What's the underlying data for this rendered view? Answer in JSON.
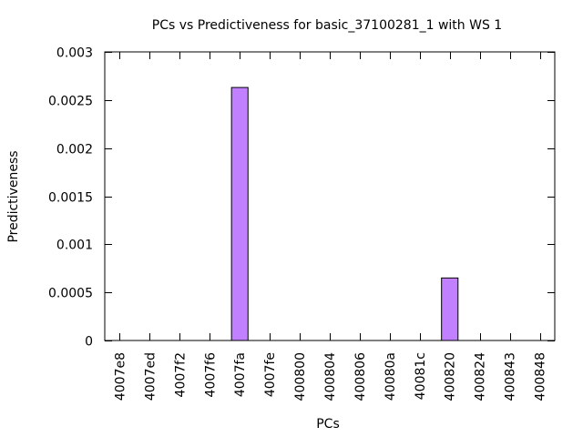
{
  "chart_data": {
    "type": "bar",
    "title": "PCs vs Predictiveness for basic_37100281_1 with WS 1",
    "xlabel": "PCs",
    "ylabel": "Predictiveness",
    "categories": [
      "4007e8",
      "4007ed",
      "4007f2",
      "4007f6",
      "4007fa",
      "4007fe",
      "400800",
      "400804",
      "400806",
      "40080a",
      "40081c",
      "400820",
      "400824",
      "400843",
      "400848"
    ],
    "values": [
      0,
      0,
      0,
      0,
      0.00263,
      0,
      0,
      0,
      0,
      0,
      0,
      0.00065,
      0,
      0,
      0
    ],
    "ylim": [
      0,
      0.003
    ],
    "yticks": [
      "0",
      "0.0005",
      "0.001",
      "0.0015",
      "0.002",
      "0.0025",
      "0.003"
    ],
    "ytick_values": [
      0,
      0.0005,
      0.001,
      0.0015,
      0.002,
      0.0025,
      0.003
    ],
    "grid": false,
    "legend": "none",
    "bar_color": "#c080ff",
    "bar_edge_color": "#000000"
  }
}
